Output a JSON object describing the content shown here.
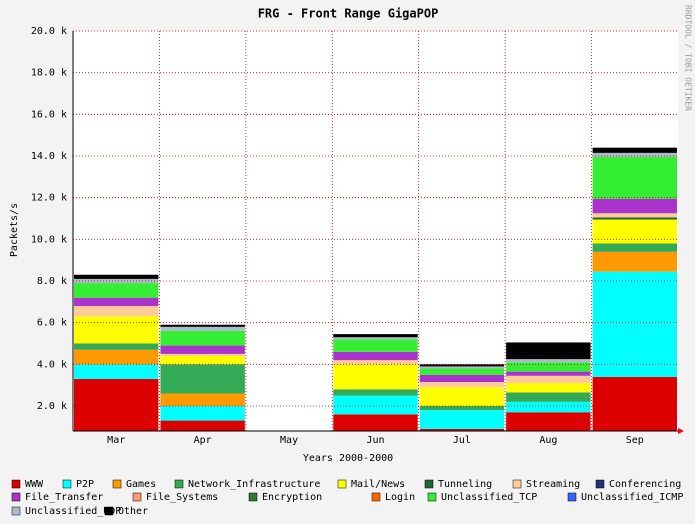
{
  "chart_data": {
    "type": "bar",
    "title": "FRG - Front Range GigaPOP",
    "y_label": "Packets/s",
    "x_label": "Years 2000-2000",
    "watermark": "RRDTOOL / TOBI OETIKER",
    "categories": [
      "Mar",
      "Apr",
      "May",
      "Jun",
      "Jul",
      "Aug",
      "Sep"
    ],
    "ylim": [
      800,
      20000
    ],
    "yticks": [
      {
        "value": 2000,
        "label": "2.0 k"
      },
      {
        "value": 4000,
        "label": "4.0 k"
      },
      {
        "value": 6000,
        "label": "6.0 k"
      },
      {
        "value": 8000,
        "label": "8.0 k"
      },
      {
        "value": 10000,
        "label": "10.0 k"
      },
      {
        "value": 12000,
        "label": "12.0 k"
      },
      {
        "value": 14000,
        "label": "14.0 k"
      },
      {
        "value": 16000,
        "label": "16.0 k"
      },
      {
        "value": 18000,
        "label": "18.0 k"
      },
      {
        "value": 20000,
        "label": "20.0 k"
      }
    ],
    "grid": true,
    "stacked": true,
    "series": [
      {
        "name": "WWW",
        "color": "#dd0000",
        "values": [
          3300,
          1300,
          0,
          1600,
          900,
          1700,
          3400
        ]
      },
      {
        "name": "P2P",
        "color": "#00ffff",
        "values": [
          700,
          700,
          0,
          900,
          900,
          500,
          5050
        ]
      },
      {
        "name": "Games",
        "color": "#ff9900",
        "values": [
          700,
          600,
          0,
          0,
          0,
          0,
          950
        ]
      },
      {
        "name": "Network_Infrastructure",
        "color": "#33aa55",
        "values": [
          300,
          1400,
          0,
          300,
          200,
          450,
          400
        ]
      },
      {
        "name": "Mail/News",
        "color": "#ffff00",
        "values": [
          1300,
          400,
          0,
          1200,
          900,
          450,
          1150
        ]
      },
      {
        "name": "Tunneling",
        "color": "#226633",
        "values": [
          0,
          0,
          0,
          0,
          0,
          0,
          100
        ]
      },
      {
        "name": "Streaming",
        "color": "#ffcc99",
        "values": [
          500,
          100,
          0,
          200,
          250,
          350,
          200
        ]
      },
      {
        "name": "Conferencing",
        "color": "#223377",
        "values": [
          0,
          0,
          0,
          0,
          0,
          0,
          0
        ]
      },
      {
        "name": "File_Transfer",
        "color": "#aa33cc",
        "values": [
          400,
          400,
          0,
          400,
          350,
          200,
          700
        ]
      },
      {
        "name": "File_Systems",
        "color": "#ff9977",
        "values": [
          0,
          0,
          0,
          0,
          0,
          0,
          0
        ]
      },
      {
        "name": "Encryption",
        "color": "#337733",
        "values": [
          0,
          0,
          0,
          0,
          0,
          0,
          0
        ]
      },
      {
        "name": "Login",
        "color": "#ff6600",
        "values": [
          0,
          0,
          0,
          0,
          0,
          0,
          0
        ]
      },
      {
        "name": "Unclassified_TCP",
        "color": "#33ee33",
        "values": [
          700,
          700,
          0,
          600,
          300,
          450,
          2000
        ]
      },
      {
        "name": "Unclassified_ICMP",
        "color": "#3366ff",
        "values": [
          0,
          0,
          0,
          0,
          0,
          0,
          0
        ]
      },
      {
        "name": "Unclassified_UDP",
        "color": "#aabbcc",
        "values": [
          200,
          200,
          0,
          100,
          100,
          150,
          200
        ]
      },
      {
        "name": "Other",
        "color": "#000000",
        "values": [
          200,
          100,
          0,
          150,
          100,
          800,
          250
        ]
      }
    ]
  }
}
